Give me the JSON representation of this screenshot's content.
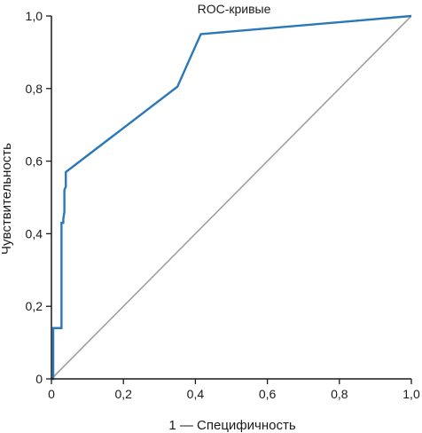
{
  "chart_data": {
    "type": "line",
    "title": "ROC-кривые",
    "xlabel": "1 — Специфичность",
    "ylabel": "Чувствительность",
    "xlim": [
      0,
      1
    ],
    "ylim": [
      0,
      1
    ],
    "grid": false,
    "x_ticks": [
      0,
      0.2,
      0.4,
      0.6,
      0.8,
      1.0
    ],
    "x_tick_labels": [
      "0",
      "0,2",
      "0,4",
      "0,6",
      "0,8",
      "1,0"
    ],
    "y_ticks": [
      0,
      0.2,
      0.4,
      0.6,
      0.8,
      1.0
    ],
    "y_tick_labels": [
      "0",
      "0,2",
      "0,4",
      "0,6",
      "0,8",
      "1,0"
    ],
    "series": [
      {
        "color": "#2a78b8",
        "x": [
          0,
          0.005,
          0.005,
          0.028,
          0.028,
          0.033,
          0.033,
          0.036,
          0.036,
          0.04,
          0.04,
          0.35,
          0.415,
          1.0
        ],
        "y": [
          0,
          0,
          0.14,
          0.14,
          0.43,
          0.43,
          0.44,
          0.46,
          0.52,
          0.53,
          0.57,
          0.805,
          0.95,
          1.0
        ]
      },
      {
        "color": "#a0a0a0",
        "x": [
          0,
          1
        ],
        "y": [
          0,
          1
        ]
      }
    ]
  }
}
